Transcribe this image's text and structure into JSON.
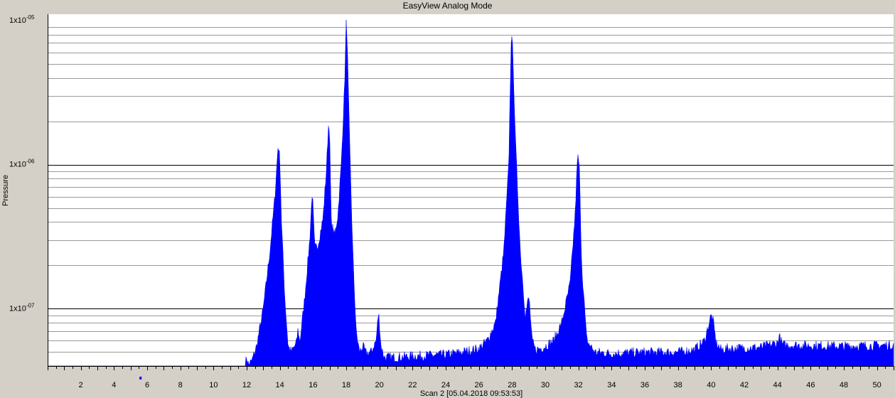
{
  "window": {
    "title": "EasyView Analog Mode"
  },
  "x_axis_caption": "Scan 2 [05.04.2018 09:53:53]",
  "colors": {
    "series": "#0000ff",
    "plot_bg": "#ffffff",
    "frame_bg": "#d4d0c8",
    "grid": "#000000"
  },
  "chart_data": {
    "type": "area",
    "title": "EasyView Analog Mode",
    "xlabel": "",
    "ylabel": "Pressure",
    "yscale": "log",
    "xlim": [
      0,
      51
    ],
    "ylim": [
      4e-08,
      1e-05
    ],
    "grid": true,
    "legend": "none",
    "x_ticks": [
      2,
      4,
      6,
      8,
      10,
      12,
      14,
      16,
      18,
      20,
      22,
      24,
      26,
      28,
      30,
      32,
      34,
      36,
      38,
      40,
      42,
      44,
      46,
      48,
      50
    ],
    "y_tick_labels": [
      {
        "value": 1e-05,
        "base": "1x10",
        "exp": "-05"
      },
      {
        "value": 1e-06,
        "base": "1x10",
        "exp": "-06"
      },
      {
        "value": 1e-07,
        "base": "1x10",
        "exp": "-07"
      }
    ],
    "marker": {
      "x": 5.6
    },
    "series": [
      {
        "x": [
          0,
          11.9,
          12.0,
          12.1,
          12.3,
          12.6,
          13.0,
          13.4,
          13.7,
          13.9,
          14.0,
          14.1,
          14.3,
          14.5,
          14.7,
          15.0,
          15.1,
          15.2,
          15.5,
          15.8,
          15.95,
          16.0,
          16.1,
          16.3,
          16.6,
          16.8,
          16.95,
          17.0,
          17.1,
          17.3,
          17.5,
          17.7,
          17.9,
          18.0,
          18.05,
          18.2,
          18.4,
          18.6,
          18.8,
          19.0,
          19.2,
          19.5,
          19.8,
          19.95,
          20.0,
          20.1,
          20.3,
          21.0,
          22.0,
          24.0,
          25.0,
          26.0,
          26.5,
          27.0,
          27.5,
          27.8,
          27.95,
          28.05,
          28.2,
          28.5,
          28.8,
          29.0,
          29.05,
          29.2,
          29.4,
          29.7,
          30.0,
          30.5,
          31.0,
          31.5,
          31.8,
          31.95,
          32.05,
          32.2,
          32.5,
          33.0,
          34.0,
          36.0,
          38.0,
          39.0,
          39.6,
          40.0,
          40.1,
          40.3,
          40.6,
          41.0,
          43.0,
          44.0,
          44.1,
          44.3,
          45.0,
          48.0,
          51.0
        ],
        "y": [
          4e-08,
          4e-08,
          4.6e-08,
          4.1e-08,
          4.3e-08,
          5.5e-08,
          1e-07,
          2.5e-07,
          6e-07,
          1.4e-06,
          1.1e-06,
          4e-07,
          1.2e-07,
          5.5e-08,
          5e-08,
          5.8e-08,
          7.3e-08,
          5.8e-08,
          1.2e-07,
          3e-07,
          6.5e-07,
          5e-07,
          2.6e-07,
          2.8e-07,
          4.2e-07,
          9e-07,
          2.1e-06,
          1.6e-06,
          4e-07,
          3.2e-07,
          4.5e-07,
          1e-06,
          3.5e-06,
          9.5e-06,
          8e-06,
          1.5e-06,
          2.4e-07,
          7e-08,
          5e-08,
          5.5e-08,
          4.9e-08,
          5e-08,
          6e-08,
          9.5e-08,
          8e-08,
          5.5e-08,
          4.6e-08,
          4.6e-08,
          4.7e-08,
          4.8e-08,
          5e-08,
          5.3e-08,
          6e-08,
          8e-08,
          2.5e-07,
          1e-06,
          8e-06,
          6e-06,
          1.5e-06,
          2.5e-07,
          9e-08,
          1.2e-07,
          1.1e-07,
          6e-08,
          5.2e-08,
          5.3e-08,
          5.5e-08,
          6e-08,
          8e-08,
          1.5e-07,
          4.5e-07,
          1.15e-06,
          1e-06,
          2e-07,
          6e-08,
          5e-08,
          4.9e-08,
          5e-08,
          5e-08,
          5.2e-08,
          6e-08,
          9e-08,
          8.5e-08,
          5.8e-08,
          5.2e-08,
          5.3e-08,
          5.4e-08,
          5.8e-08,
          6.5e-08,
          5.6e-08,
          5.6e-08,
          5.5e-08,
          5.6e-08
        ]
      }
    ]
  }
}
